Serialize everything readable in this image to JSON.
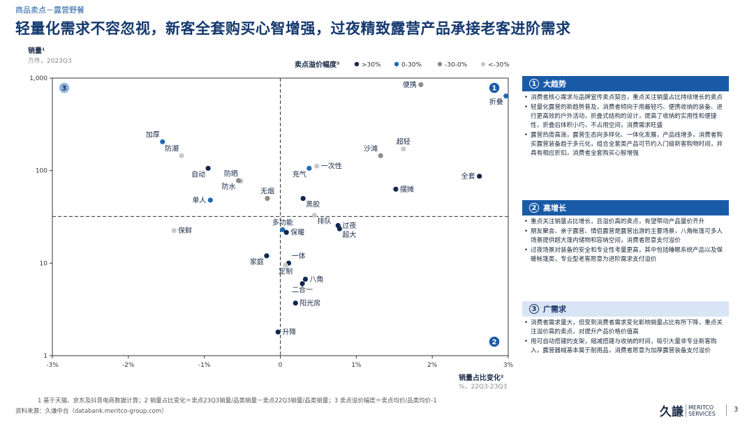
{
  "header": {
    "breadcrumb": "商品卖点－露营野餐",
    "title": "轻量化需求不容忽视，新客全套购买心智增强，过夜精致露营产品承接老客进阶需求"
  },
  "chart_data": {
    "type": "scatter",
    "y_title": "销量¹",
    "y_subtitle": "万件，2023Q3",
    "x_title": "销量占比变化²",
    "x_subtitle": "%，22Q3-23Q3",
    "x_scale": "linear",
    "y_scale": "log",
    "xlim": [
      -3,
      3
    ],
    "ylim": [
      1,
      1000
    ],
    "x_ticks": [
      -3,
      -2,
      -1,
      0,
      1,
      2,
      3
    ],
    "x_tick_labels": [
      "-3%",
      "-2%",
      "-1%",
      "0",
      "1%",
      "2%",
      "3%"
    ],
    "y_ticks": [
      1,
      10,
      100,
      1000
    ],
    "y_tick_labels": [
      "1",
      "10",
      "100",
      "1,000"
    ],
    "quadrant_lines": {
      "x": 0,
      "y": 32
    },
    "quadrant_labels": [
      {
        "num": "1",
        "position": "top-right"
      },
      {
        "num": "2",
        "position": "bottom-right"
      },
      {
        "num": "3",
        "position": "top-left"
      }
    ],
    "legend_title": "卖点溢价幅度³",
    "legend": [
      {
        "key": "a",
        "label": ">30%",
        "color": "#13284f"
      },
      {
        "key": "b",
        "label": "0-30%",
        "color": "#1f6bb5"
      },
      {
        "key": "c",
        "label": "-30-0%",
        "color": "#8c8c8c"
      },
      {
        "key": "d",
        "label": "<-30%",
        "color": "#c9c9c9"
      }
    ],
    "points": [
      {
        "label": "便携",
        "x": 1.85,
        "y": 850,
        "cat": "c",
        "anchor": "left"
      },
      {
        "label": "折叠",
        "x": 2.97,
        "y": 640,
        "cat": "b",
        "anchor": "below-left"
      },
      {
        "label": "沙滩",
        "x": 1.32,
        "y": 145,
        "cat": "c",
        "anchor": "above-left"
      },
      {
        "label": "超轻",
        "x": 1.62,
        "y": 172,
        "cat": "d",
        "anchor": "above"
      },
      {
        "label": "全套",
        "x": 2.62,
        "y": 87,
        "cat": "a",
        "anchor": "left"
      },
      {
        "label": "摆摊",
        "x": 1.52,
        "y": 63,
        "cat": "a",
        "anchor": "right"
      },
      {
        "label": "一次性",
        "x": 0.48,
        "y": 112,
        "cat": "d",
        "anchor": "right"
      },
      {
        "label": "充气",
        "x": 0.38,
        "y": 106,
        "cat": "b",
        "anchor": "below-left"
      },
      {
        "label": "黑胶",
        "x": 0.3,
        "y": 50,
        "cat": "a",
        "anchor": "below-right"
      },
      {
        "label": "排队",
        "x": 0.45,
        "y": 33,
        "cat": "d",
        "anchor": "below-right"
      },
      {
        "label": "过夜",
        "x": 0.76,
        "y": 25.5,
        "cat": "a",
        "anchor": "right"
      },
      {
        "label": "超大",
        "x": 0.78,
        "y": 23.5,
        "cat": "a",
        "anchor": "below-right"
      },
      {
        "label": "多功能",
        "x": 0.03,
        "y": 23,
        "cat": "b",
        "anchor": "above"
      },
      {
        "label": "保暖",
        "x": 0.08,
        "y": 21.5,
        "cat": "a",
        "anchor": "right"
      },
      {
        "label": "家庭",
        "x": -0.18,
        "y": 12,
        "cat": "a",
        "anchor": "below-left"
      },
      {
        "label": "一体",
        "x": 0.11,
        "y": 10,
        "cat": "a",
        "anchor": "above-right"
      },
      {
        "label": "定制",
        "x": 0.07,
        "y": 9.5,
        "cat": "d",
        "anchor": "below"
      },
      {
        "label": "八角",
        "x": 0.33,
        "y": 6.7,
        "cat": "a",
        "anchor": "right"
      },
      {
        "label": "二合一",
        "x": 0.29,
        "y": 6.0,
        "cat": "a",
        "anchor": "below"
      },
      {
        "label": "阳光房",
        "x": 0.2,
        "y": 3.7,
        "cat": "a",
        "anchor": "right"
      },
      {
        "label": "升降",
        "x": -0.03,
        "y": 1.8,
        "cat": "a",
        "anchor": "right"
      },
      {
        "label": "加厚",
        "x": -1.55,
        "y": 205,
        "cat": "b",
        "anchor": "above-left"
      },
      {
        "label": "防潮",
        "x": -1.3,
        "y": 145,
        "cat": "d",
        "anchor": "above-left"
      },
      {
        "label": "自动",
        "x": -0.95,
        "y": 106,
        "cat": "a",
        "anchor": "below-left"
      },
      {
        "label": "防晒",
        "x": -0.52,
        "y": 77,
        "cat": "d",
        "anchor": "above-left"
      },
      {
        "label": "防水",
        "x": -0.55,
        "y": 78,
        "cat": "c",
        "anchor": "below-left"
      },
      {
        "label": "无烟",
        "x": -0.17,
        "y": 50,
        "cat": "c",
        "anchor": "above"
      },
      {
        "label": "单人",
        "x": -0.92,
        "y": 48,
        "cat": "b",
        "anchor": "left"
      },
      {
        "label": "保鲜",
        "x": -1.4,
        "y": 22.5,
        "cat": "d",
        "anchor": "right"
      }
    ]
  },
  "panel": {
    "sections": [
      {
        "num": "1",
        "title": "大趋势",
        "style": "dark",
        "bullets": [
          "消费者核心需求与品牌宣传卖点契合，重点关注销量占比持续增长的卖点",
          "轻量化露营的新趋势普及，消费者倾向于用最轻巧、便携收纳的装备、进行更高效的户外活动，折叠式结构的设计，提高了收纳的实用性和便捷性，折叠后体积小巧，不占用空间，消费需求旺盛",
          "露营热度高涨，露营生态向多样化、一体化发展，产品线增多，消费者购买露营装备趋于多元化，组合全套类产品可节约入门级新客购物时间，并具有相应折扣，消费者全套购买心智增强"
        ]
      },
      {
        "num": "2",
        "title": "高增长",
        "style": "dark",
        "bullets": [
          "重点关注销量占比增长，且溢价高的卖点，有望带动产品量价齐升",
          "朋友聚会、亲子露营、情侣露营是露营出游的主要场景，八角帐篷可多人场景提供超大篷内储物和容纳空间，消费者愿意支付溢价",
          "过夜场景对装备的安全和专业性考量更高，其中包括睡眠系统产品以及保暖帐篷类，专业型老客愿意为进阶需求支付溢价"
        ]
      },
      {
        "num": "3",
        "title": "广需求",
        "style": "light",
        "bullets": [
          "消费者需求量大，但受到消费者需求变化影响销量占比有所下降，重点关注溢价高的卖点，对提升产品价格价值高",
          "用可自动搭建的支架，缩减搭建与收纳的时间，吸引大量非专业新客购入，露营器械基本属于耐用品，消费者愿意为加厚露营装备支付溢价"
        ]
      }
    ]
  },
  "footer": {
    "footnote": "1  基于天猫、京东及抖音电商数据计算；2  销量占比变化＝卖点23Q3销量/品类销量－卖点22Q3销量/品类销量；3  卖点溢价幅度＝卖点均价/品类均价-1",
    "source": "资料来源：久谦中台（databank.meritco-group.com）",
    "logo_cn": "久謙",
    "logo_en_1": "MERITCO",
    "logo_en_2": "SERVICES",
    "page": "3"
  }
}
